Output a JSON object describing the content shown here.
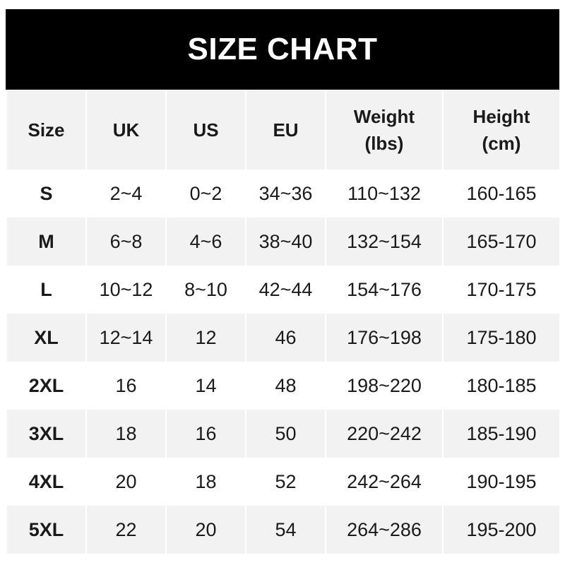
{
  "title": "SIZE CHART",
  "headers": [
    {
      "line1": "Size",
      "line2": ""
    },
    {
      "line1": "UK",
      "line2": ""
    },
    {
      "line1": "US",
      "line2": ""
    },
    {
      "line1": "EU",
      "line2": ""
    },
    {
      "line1": "Weight",
      "line2": "(lbs)"
    },
    {
      "line1": "Height",
      "line2": "(cm)"
    }
  ],
  "rows": [
    [
      "S",
      "2~4",
      "0~2",
      "34~36",
      "110~132",
      "160-165"
    ],
    [
      "M",
      "6~8",
      "4~6",
      "38~40",
      "132~154",
      "165-170"
    ],
    [
      "L",
      "10~12",
      "8~10",
      "42~44",
      "154~176",
      "170-175"
    ],
    [
      "XL",
      "12~14",
      "12",
      "46",
      "176~198",
      "175-180"
    ],
    [
      "2XL",
      "16",
      "14",
      "48",
      "198~220",
      "180-185"
    ],
    [
      "3XL",
      "18",
      "16",
      "50",
      "220~242",
      "185-190"
    ],
    [
      "4XL",
      "20",
      "18",
      "52",
      "242~264",
      "190-195"
    ],
    [
      "5XL",
      "22",
      "20",
      "54",
      "264~286",
      "195-200"
    ]
  ],
  "colors": {
    "title_bg": "#000000",
    "header_bg": "#f2f2f2",
    "stripe_bg": "#f2f2f2"
  }
}
